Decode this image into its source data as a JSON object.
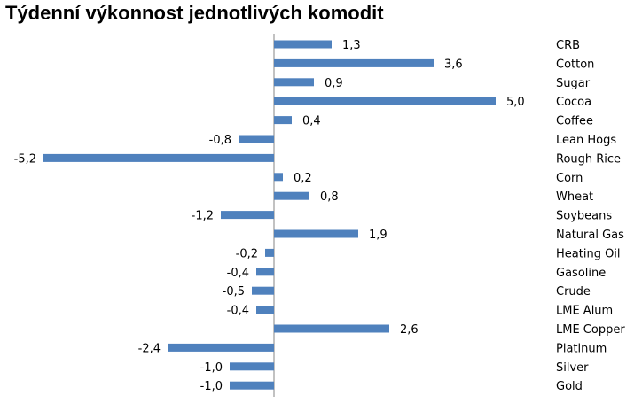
{
  "chart_data": {
    "type": "bar",
    "orientation": "horizontal",
    "title": "Týdenní výkonnost jednotlivých komodit",
    "categories": [
      "CRB",
      "Cotton",
      "Sugar",
      "Cocoa",
      "Coffee",
      "Lean Hogs",
      "Rough Rice",
      "Corn",
      "Wheat",
      "Soybeans",
      "Natural Gas",
      "Heating Oil",
      "Gasoline",
      "Crude",
      "LME Alum",
      "LME Copper",
      "Platinum",
      "Silver",
      "Gold"
    ],
    "values": [
      1.3,
      3.6,
      0.9,
      5.0,
      0.4,
      -0.8,
      -5.2,
      0.2,
      0.8,
      -1.2,
      1.9,
      -0.2,
      -0.4,
      -0.5,
      -0.4,
      2.6,
      -2.4,
      -1.0,
      -1.0
    ],
    "value_labels": [
      "1,3",
      "3,6",
      "0,9",
      "5,0",
      "0,4",
      "-0,8",
      "-5,2",
      "0,2",
      "0,8",
      "-1,2",
      "1,9",
      "-0,2",
      "-0,4",
      "-0,5",
      "-0,4",
      "2,6",
      "-2,4",
      "-1,0",
      "-1,0"
    ],
    "bar_color": "#4F81BD",
    "axis_color": "#868686",
    "legend": "none",
    "grid": false
  }
}
